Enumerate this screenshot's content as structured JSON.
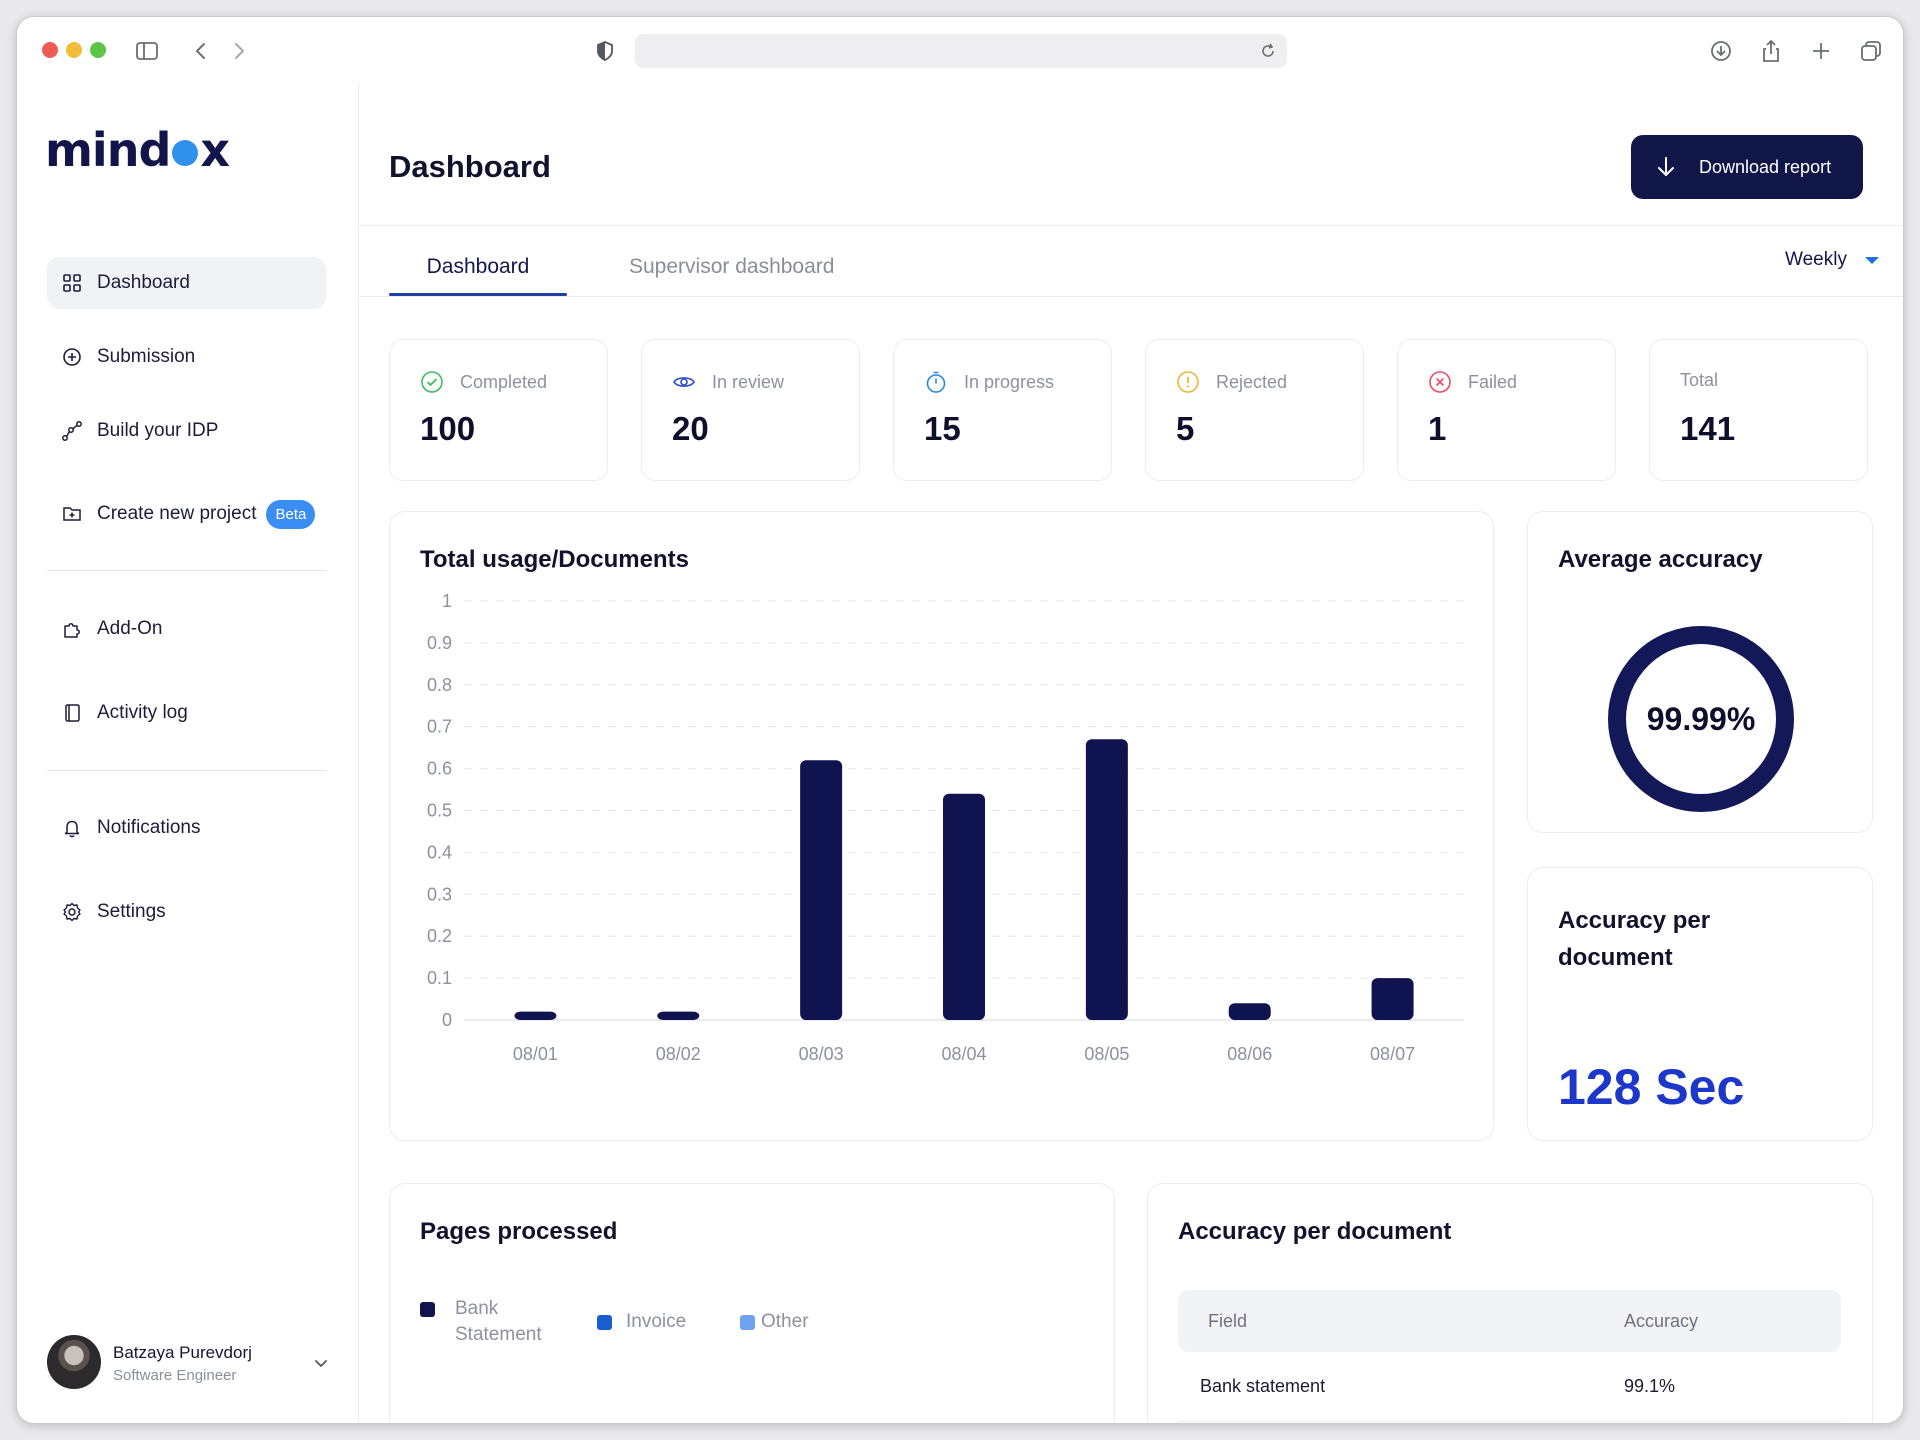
{
  "brand": {
    "logo_left": "mind",
    "logo_right": "x"
  },
  "sidebar": {
    "items": [
      {
        "label": "Dashboard",
        "icon": "grid-icon"
      },
      {
        "label": "Submission",
        "icon": "plus-circle-icon"
      },
      {
        "label": "Build your IDP",
        "icon": "nodes-icon"
      },
      {
        "label": "Create new project",
        "icon": "folder-plus-icon",
        "badge": "Beta"
      },
      {
        "label": "Add-On",
        "icon": "puzzle-icon"
      },
      {
        "label": "Activity log",
        "icon": "log-icon"
      },
      {
        "label": "Notifications",
        "icon": "bell-icon"
      },
      {
        "label": "Settings",
        "icon": "gear-icon"
      }
    ],
    "user": {
      "name": "Batzaya Purevdorj",
      "role": "Software Engineer"
    }
  },
  "header": {
    "title": "Dashboard",
    "download_label": "Download report"
  },
  "tabs": [
    {
      "label": "Dashboard",
      "active": true
    },
    {
      "label": "Supervisor dashboard",
      "active": false
    }
  ],
  "period": {
    "selected": "Weekly"
  },
  "stats": [
    {
      "label": "Completed",
      "value": "100",
      "color": "#3dbb63"
    },
    {
      "label": "In review",
      "value": "20",
      "color": "#2f4fc9"
    },
    {
      "label": "In progress",
      "value": "15",
      "color": "#2f86d9"
    },
    {
      "label": "Rejected",
      "value": "5",
      "color": "#f0b63a"
    },
    {
      "label": "Failed",
      "value": "1",
      "color": "#e6506a"
    },
    {
      "label": "Total",
      "value": "141",
      "color": ""
    }
  ],
  "usage_card": {
    "title": "Total usage/Documents"
  },
  "chart_data": {
    "type": "bar",
    "title": "Total usage/Documents",
    "categories": [
      "08/01",
      "08/02",
      "08/03",
      "08/04",
      "08/05",
      "08/06",
      "08/07"
    ],
    "values": [
      0.02,
      0.02,
      0.62,
      0.54,
      0.67,
      0.04,
      0.1
    ],
    "ylim": [
      0,
      1
    ],
    "yticks": [
      "0",
      "0.1",
      "0.2",
      "0.3",
      "0.4",
      "0.5",
      "0.6",
      "0.7",
      "0.8",
      "0.9",
      "1"
    ],
    "grid": true,
    "bar_color": "#0f1350"
  },
  "accuracy_card": {
    "title": "Average accuracy",
    "value_text": "99.99%",
    "fraction": 0.9999,
    "ring_color": "#121858"
  },
  "accuracy_doc_card": {
    "title": "Accuracy per document",
    "value": "128 Sec"
  },
  "pages_card": {
    "title": "Pages processed",
    "legend": [
      {
        "label": "Bank Statement",
        "color": "#10164d"
      },
      {
        "label": "Invoice",
        "color": "#1a5fd0"
      },
      {
        "label": "Other",
        "color": "#6ea3f2"
      }
    ]
  },
  "accuracy_table": {
    "title": "Accuracy per document",
    "columns": [
      "Field",
      "Accuracy"
    ],
    "rows": [
      {
        "field": "Bank statement",
        "accuracy": "99.1%"
      }
    ]
  }
}
